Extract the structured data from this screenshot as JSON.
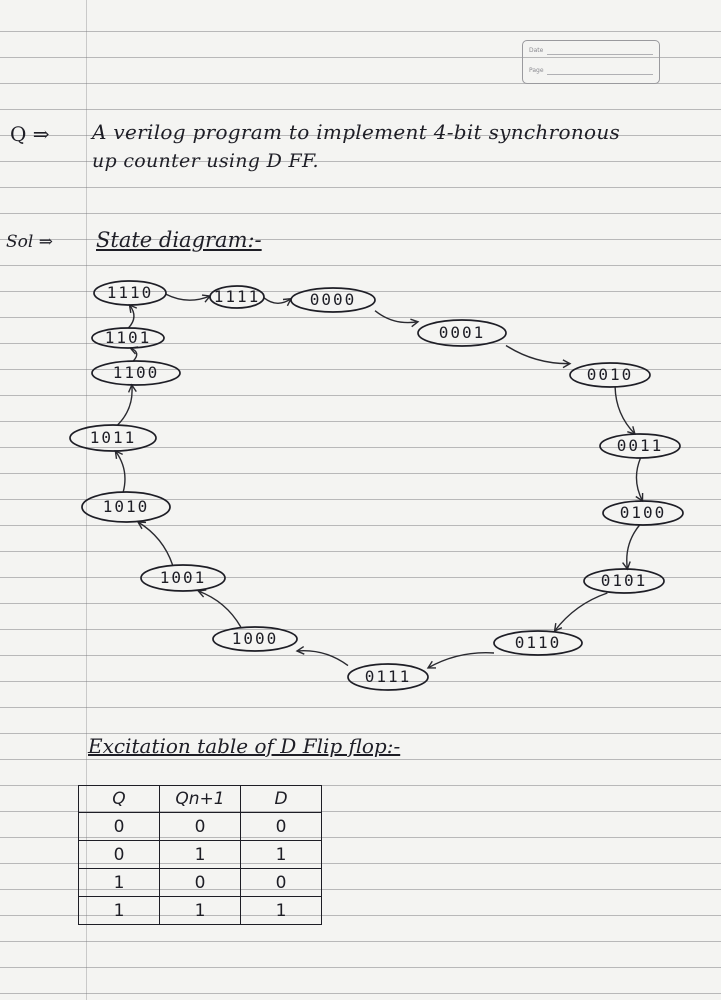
{
  "question": {
    "marker": "Q ⇒",
    "line1": "A verilog program to implement 4-bit synchronous",
    "line2": "up counter using D FF."
  },
  "solution": {
    "marker": "Sol ⇒",
    "state_diagram_heading": "State diagram:-"
  },
  "states": [
    {
      "label": "0000"
    },
    {
      "label": "0001"
    },
    {
      "label": "0010"
    },
    {
      "label": "0011"
    },
    {
      "label": "0100"
    },
    {
      "label": "0101"
    },
    {
      "label": "0110"
    },
    {
      "label": "0111"
    },
    {
      "label": "1000"
    },
    {
      "label": "1001"
    },
    {
      "label": "1010"
    },
    {
      "label": "1011"
    },
    {
      "label": "1100"
    },
    {
      "label": "1101"
    },
    {
      "label": "1110"
    },
    {
      "label": "1111"
    }
  ],
  "excitation": {
    "heading": "Excitation table of D Flip flop:-",
    "headers": [
      "Q",
      "Qn+1",
      "D"
    ],
    "rows": [
      [
        "0",
        "0",
        "0"
      ],
      [
        "0",
        "1",
        "1"
      ],
      [
        "1",
        "0",
        "0"
      ],
      [
        "1",
        "1",
        "1"
      ]
    ]
  },
  "colors": {
    "ink": "#1e1e26",
    "paper": "#f4f4f2",
    "rule": "#6e6e73"
  }
}
